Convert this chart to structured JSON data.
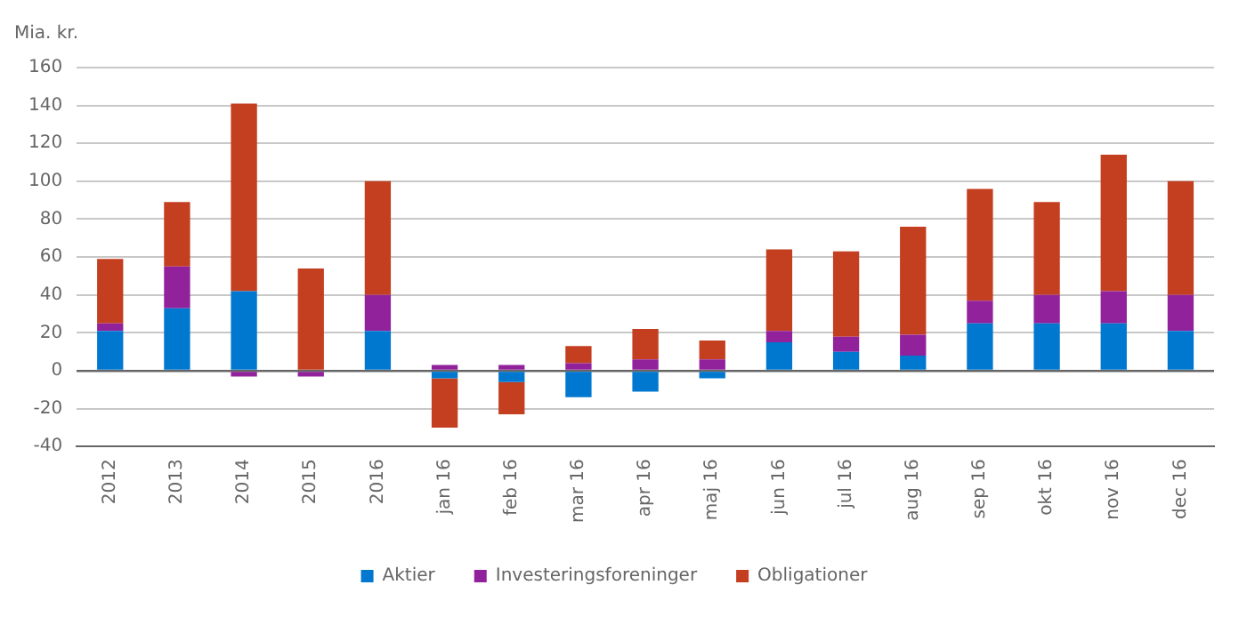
{
  "chart_data": {
    "type": "bar",
    "stacked": true,
    "ylabel": "Mia. kr.",
    "categories": [
      "2012",
      "2013",
      "2014",
      "2015",
      "2016",
      "jan 16",
      "feb 16",
      "mar 16",
      "apr 16",
      "maj 16",
      "jun 16",
      "jul 16",
      "aug 16",
      "sep 16",
      "okt 16",
      "nov 16",
      "dec 16"
    ],
    "series": [
      {
        "name": "Aktier",
        "color": "#0078d0",
        "values": [
          21,
          33,
          42,
          0,
          21,
          -4,
          -6,
          -14,
          -11,
          -4,
          15,
          10,
          8,
          25,
          25,
          25,
          21
        ]
      },
      {
        "name": "Investeringsforeninger",
        "color": "#92229b",
        "values": [
          4,
          22,
          -3,
          -3,
          19,
          3,
          3,
          4,
          6,
          6,
          6,
          8,
          11,
          12,
          15,
          17,
          19
        ]
      },
      {
        "name": "Obligationer",
        "color": "#c43e20",
        "values": [
          34,
          34,
          99,
          54,
          60,
          -26,
          -17,
          9,
          16,
          10,
          43,
          45,
          57,
          59,
          49,
          72,
          60
        ]
      }
    ],
    "ylim": [
      -40,
      160
    ],
    "yticks": [
      -40,
      -20,
      0,
      20,
      40,
      60,
      80,
      100,
      120,
      140,
      160
    ],
    "grid": "y",
    "legend": "bottom"
  }
}
